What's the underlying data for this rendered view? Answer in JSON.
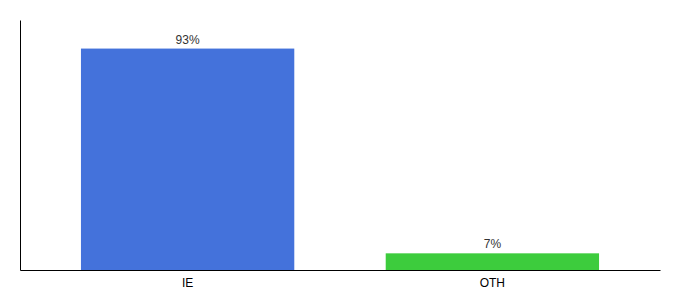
{
  "chart_data": {
    "type": "bar",
    "categories": [
      "IE",
      "OTH"
    ],
    "values": [
      93,
      7
    ],
    "value_labels": [
      "93%",
      "7%"
    ],
    "colors": [
      "#4472db",
      "#3dcc3d"
    ],
    "ylim": [
      0,
      105
    ],
    "data_labels": true,
    "tick_labels": "x",
    "grid": false
  }
}
